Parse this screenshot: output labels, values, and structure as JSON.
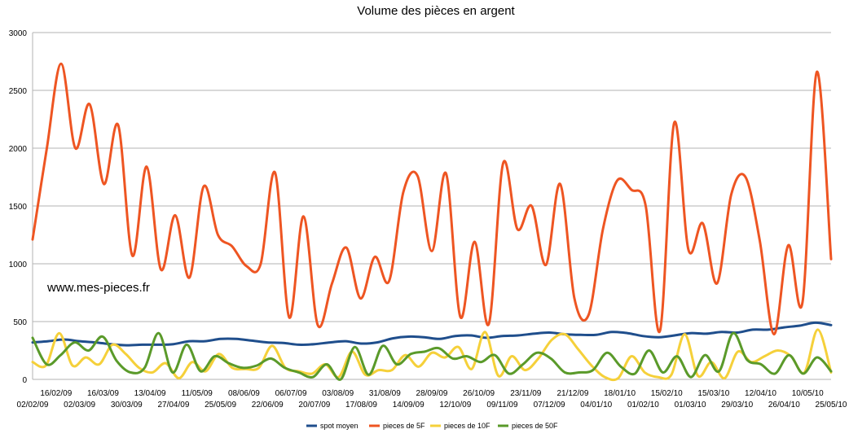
{
  "chart_data": {
    "type": "line",
    "title": "Volume des pièces en argent",
    "watermark": "www.mes-pieces.fr",
    "ylim": [
      0,
      3000
    ],
    "y_ticks": [
      0,
      500,
      1000,
      1500,
      2000,
      2500,
      3000
    ],
    "grid": "horizontal",
    "legend_position": "bottom",
    "x_tick_labels": [
      "02/02/09",
      "16/02/09",
      "02/03/09",
      "16/03/09",
      "30/03/09",
      "13/04/09",
      "27/04/09",
      "11/05/09",
      "25/05/09",
      "08/06/09",
      "22/06/09",
      "06/07/09",
      "20/07/09",
      "03/08/09",
      "17/08/09",
      "31/08/09",
      "14/09/09",
      "28/09/09",
      "12/10/09",
      "26/10/09",
      "09/11/09",
      "23/11/09",
      "07/12/09",
      "21/12/09",
      "04/01/10",
      "18/01/10",
      "01/02/10",
      "15/02/10",
      "01/03/10",
      "15/03/10",
      "29/03/10",
      "12/04/10",
      "26/04/10",
      "10/05/10",
      "25/05/10"
    ],
    "series": [
      {
        "name": "spot moyen",
        "color": "#1f4e8c",
        "values": [
          320,
          330,
          345,
          330,
          320,
          305,
          295,
          300,
          300,
          305,
          330,
          330,
          350,
          350,
          335,
          320,
          315,
          300,
          305,
          320,
          330,
          310,
          320,
          355,
          370,
          365,
          350,
          375,
          380,
          360,
          375,
          380,
          395,
          405,
          390,
          385,
          385,
          410,
          400,
          375,
          365,
          380,
          400,
          395,
          410,
          405,
          430,
          430,
          450,
          465,
          490,
          470
        ]
      },
      {
        "name": "pieces de 5F",
        "color": "#ee5522",
        "values": [
          1210,
          2000,
          2730,
          2000,
          2380,
          1690,
          2200,
          1070,
          1840,
          950,
          1420,
          880,
          1670,
          1250,
          1150,
          980,
          1000,
          1790,
          535,
          1410,
          470,
          830,
          1140,
          700,
          1060,
          850,
          1620,
          1760,
          1110,
          1780,
          540,
          1190,
          480,
          1870,
          1300,
          1500,
          990,
          1690,
          700,
          560,
          1300,
          1720,
          1640,
          1500,
          420,
          2220,
          1120,
          1350,
          830,
          1600,
          1750,
          1200,
          390,
          1160,
          670,
          2660,
          1040
        ]
      },
      {
        "name": "pieces de 10F",
        "color": "#f5d03a",
        "values": [
          150,
          120,
          400,
          120,
          190,
          130,
          300,
          220,
          100,
          60,
          140,
          10,
          150,
          70,
          220,
          100,
          90,
          100,
          290,
          100,
          70,
          50,
          130,
          20,
          240,
          40,
          80,
          80,
          210,
          110,
          230,
          190,
          280,
          90,
          410,
          30,
          200,
          80,
          180,
          340,
          390,
          260,
          120,
          20,
          10,
          200,
          60,
          20,
          40,
          390,
          30,
          150,
          10,
          240,
          150,
          200,
          250,
          200,
          60,
          430,
          60
        ]
      },
      {
        "name": "pieces de 50F",
        "color": "#5a9a2a",
        "values": [
          360,
          130,
          210,
          320,
          250,
          370,
          160,
          60,
          100,
          400,
          60,
          300,
          70,
          200,
          140,
          100,
          120,
          180,
          100,
          60,
          20,
          130,
          0,
          280,
          40,
          290,
          130,
          220,
          240,
          270,
          180,
          200,
          150,
          210,
          50,
          130,
          230,
          180,
          60,
          60,
          80,
          230,
          110,
          50,
          250,
          60,
          200,
          20,
          210,
          70,
          400,
          170,
          130,
          50,
          210,
          50,
          190,
          70
        ]
      }
    ]
  }
}
